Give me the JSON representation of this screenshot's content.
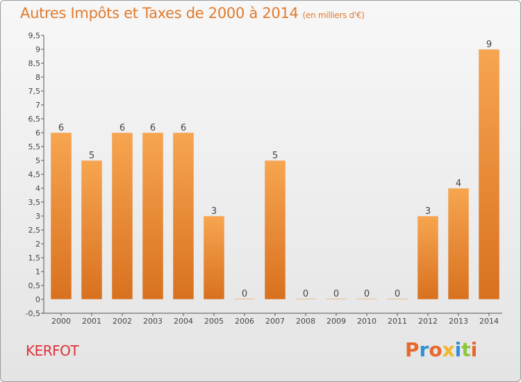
{
  "page": {
    "title": "Autres Impôts et Taxes de 2000 à 2014",
    "subtitle": "(en milliers d'€)",
    "commune": "KERFOT",
    "logo_text": "Proxiti",
    "logo_colors": [
      "#e8682c",
      "#2e8fd6",
      "#e8682c",
      "#f0b62c",
      "#2e8fd6",
      "#8cc63e",
      "#e8682c"
    ]
  },
  "chart_data": {
    "type": "bar",
    "title": "Autres Impôts et Taxes de 2000 à 2014",
    "subtitle": "(en milliers d'€)",
    "categories": [
      "2000",
      "2001",
      "2002",
      "2003",
      "2004",
      "2005",
      "2006",
      "2007",
      "2008",
      "2009",
      "2010",
      "2011",
      "2012",
      "2013",
      "2014"
    ],
    "values": [
      6,
      5,
      6,
      6,
      6,
      3,
      0,
      5,
      0,
      0,
      0,
      0,
      3,
      4,
      9
    ],
    "data_labels": [
      "6",
      "5",
      "6",
      "6",
      "6",
      "3",
      "0",
      "5",
      "0",
      "0",
      "0",
      "0",
      "3",
      "4",
      "9"
    ],
    "ylim": [
      -0.5,
      9.5
    ],
    "yticks": [
      "-0,5",
      "0",
      "0,5",
      "1",
      "1,5",
      "2",
      "2,5",
      "3",
      "3,5",
      "4",
      "4,5",
      "5",
      "5,5",
      "6",
      "6,5",
      "7",
      "7,5",
      "8",
      "8,5",
      "9",
      "9,5"
    ],
    "ytick_values": [
      -0.5,
      0,
      0.5,
      1,
      1.5,
      2,
      2.5,
      3,
      3.5,
      4,
      4.5,
      5,
      5.5,
      6,
      6.5,
      7,
      7.5,
      8,
      8.5,
      9,
      9.5
    ],
    "grid": false,
    "bar_color_top": "#f7a550",
    "bar_color_bottom": "#d8711f",
    "axis_color": "#555555",
    "text_color": "#444444"
  }
}
